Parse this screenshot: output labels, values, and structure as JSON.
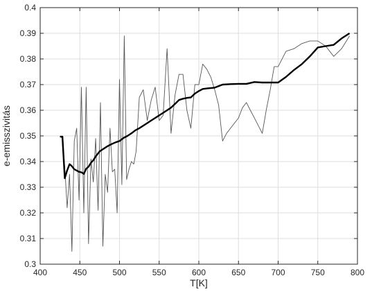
{
  "chart_data": {
    "type": "line",
    "title": "",
    "xlabel": "T[K]",
    "ylabel": "e-emisszivitás",
    "xlim": [
      400,
      800
    ],
    "ylim": [
      0.3,
      0.4
    ],
    "xticks": [
      400,
      450,
      500,
      550,
      600,
      650,
      700,
      750,
      800
    ],
    "yticks": [
      0.3,
      0.31,
      0.32,
      0.33,
      0.34,
      0.35,
      0.36,
      0.37,
      0.38,
      0.39,
      0.4
    ],
    "xtick_labels": [
      "400",
      "450",
      "500",
      "550",
      "600",
      "650",
      "700",
      "750",
      "800"
    ],
    "ytick_labels": [
      "0.3",
      "0.31",
      "0.32",
      "0.33",
      "0.34",
      "0.35",
      "0.36",
      "0.37",
      "0.38",
      "0.39",
      "0.4"
    ],
    "grid": true,
    "series": [
      {
        "style": "thin",
        "color": "#555555",
        "x": [
          425,
          428,
          431,
          434,
          437,
          440,
          443,
          446,
          449,
          452,
          455,
          458,
          461,
          464,
          467,
          470,
          473,
          476,
          479,
          482,
          485,
          488,
          491,
          494,
          497,
          500,
          503,
          506,
          509,
          512,
          515,
          518,
          521,
          525,
          530,
          535,
          540,
          545,
          550,
          555,
          560,
          565,
          570,
          575,
          580,
          585,
          590,
          595,
          600,
          605,
          610,
          615,
          620,
          625,
          630,
          635,
          640,
          645,
          650,
          655,
          660,
          665,
          670,
          675,
          680,
          685,
          690,
          695,
          700,
          710,
          720,
          730,
          740,
          750,
          760,
          770,
          780,
          790
        ],
        "y": [
          0.35,
          0.349,
          0.338,
          0.322,
          0.335,
          0.305,
          0.348,
          0.353,
          0.325,
          0.369,
          0.32,
          0.369,
          0.308,
          0.341,
          0.332,
          0.349,
          0.321,
          0.363,
          0.307,
          0.335,
          0.328,
          0.353,
          0.336,
          0.337,
          0.32,
          0.372,
          0.331,
          0.389,
          0.333,
          0.337,
          0.34,
          0.339,
          0.344,
          0.365,
          0.368,
          0.356,
          0.364,
          0.369,
          0.356,
          0.358,
          0.384,
          0.351,
          0.366,
          0.374,
          0.374,
          0.36,
          0.353,
          0.37,
          0.37,
          0.378,
          0.376,
          0.373,
          0.368,
          0.362,
          0.348,
          0.351,
          0.353,
          0.355,
          0.357,
          0.361,
          0.363,
          0.36,
          0.357,
          0.354,
          0.351,
          0.36,
          0.368,
          0.377,
          0.377,
          0.383,
          0.384,
          0.386,
          0.387,
          0.387,
          0.385,
          0.381,
          0.384,
          0.389
        ]
      },
      {
        "style": "thick",
        "color": "#000000",
        "x": [
          425,
          428,
          431,
          434,
          437,
          440,
          443,
          446,
          449,
          452,
          455,
          458,
          461,
          464,
          467,
          470,
          475,
          480,
          485,
          490,
          495,
          500,
          505,
          510,
          515,
          520,
          525,
          530,
          535,
          540,
          545,
          550,
          555,
          560,
          565,
          570,
          575,
          580,
          585,
          590,
          595,
          600,
          605,
          610,
          620,
          630,
          640,
          650,
          660,
          670,
          680,
          690,
          700,
          710,
          720,
          730,
          740,
          750,
          760,
          770,
          780,
          790
        ],
        "y": [
          0.3497,
          0.3497,
          0.3335,
          0.3365,
          0.339,
          0.3382,
          0.337,
          0.3365,
          0.336,
          0.3358,
          0.3352,
          0.3372,
          0.338,
          0.3395,
          0.3405,
          0.342,
          0.344,
          0.345,
          0.346,
          0.3468,
          0.3475,
          0.348,
          0.3492,
          0.35,
          0.351,
          0.3522,
          0.353,
          0.354,
          0.355,
          0.356,
          0.357,
          0.358,
          0.359,
          0.36,
          0.361,
          0.3625,
          0.364,
          0.3645,
          0.3648,
          0.365,
          0.3665,
          0.3675,
          0.3683,
          0.3685,
          0.3688,
          0.37,
          0.3702,
          0.3703,
          0.3703,
          0.371,
          0.3708,
          0.3708,
          0.3708,
          0.373,
          0.3757,
          0.378,
          0.381,
          0.3845,
          0.385,
          0.3855,
          0.388,
          0.39
        ]
      }
    ]
  }
}
